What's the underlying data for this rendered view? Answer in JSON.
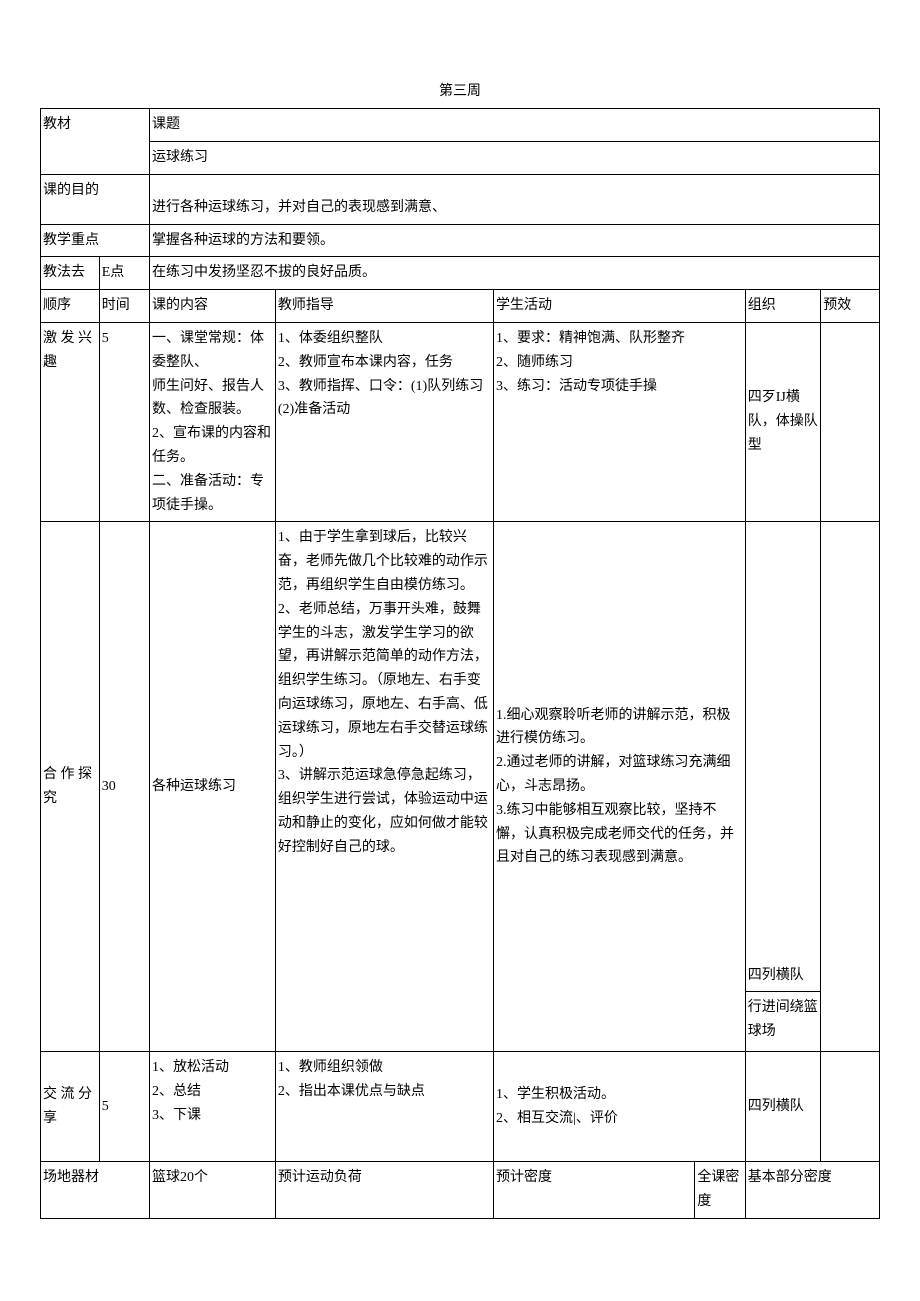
{
  "title": "第三周",
  "header": {
    "jiaocai": "教材",
    "keti_label": "课题",
    "keti_value": "运球练习",
    "mudi_label": "课的目的",
    "mudi_value": "进行各种运球练习，并对自己的表现感到满意、",
    "zhongdian_label": "教学重点",
    "zhongdian_value": "掌握各种运球的方法和要领。",
    "jiaofa_label": "教法去",
    "e_label": "E点",
    "jiaofa_value": "在练习中发扬坚忍不拔的良好品质。"
  },
  "cols": {
    "seq": "顺序",
    "time": "时间",
    "content": "课的内容",
    "guide": "教师指导",
    "activity": "学生活动",
    "org": "组织",
    "eff": "预效"
  },
  "rows": [
    {
      "seq": "激 发 兴趣",
      "time": "5",
      "content": "一、课堂常规：体委整队、\n师生问好、报告人数、检查服装。\n2、宣布课的内容和任务。\n二、准备活动：专项徒手操。",
      "guide": "1、体委组织整队\n2、教师宣布本课内容，任务\n3、教师指挥、口令：(1)队列练习\n(2)准备活动",
      "activity": "1、要求：精神饱满、队形整齐\n2、随师练习\n3、练习：活动专项徒手操",
      "org": "四歹IJ横队，体操队型",
      "eff": ""
    },
    {
      "seq": "合 作 探究",
      "time": "30",
      "content": "各种运球练习",
      "guide": "1、由于学生拿到球后，比较兴奋，老师先做几个比较难的动作示范，再组织学生自由模仿练习。\n2、老师总结，万事开头难，鼓舞学生的斗志，激发学生学习的欲望，再讲解示范简单的动作方法，组织学生练习。（原地左、右手变向运球练习，原地左、右手高、低运球练习，原地左右手交替运球练习。）\n3、讲解示范运球急停急起练习，组织学生进行尝试，体验运动中运动和静止的变化，应如何做才能较好控制好自己的球。",
      "activity": "1.细心观察聆听老师的讲解示范，积极进行模仿练习。\n2.通过老师的讲解，对篮球练习充满细心，斗志昂扬。\n3.练习中能够相互观察比较，坚持不懈，认真积极完成老师交代的任务，并且对自己的练习表现感到满意。",
      "org": "四列横队",
      "org2": "行进间绕篮球场",
      "eff": ""
    },
    {
      "seq": "交 流 分享",
      "time": "5",
      "content": "1、放松活动\n2、总结\n3、下课",
      "guide": "1、教师组织领做\n2、指出本课优点与缺点",
      "activity": "1、学生积极活动。\n2、相互交流|、评价",
      "org": "四列横队",
      "eff": ""
    }
  ],
  "footer": {
    "cdqc_label": "场地器材",
    "cdqc_value": "篮球20个",
    "yjfh_label": "预计运动负荷",
    "yjmd_label": "预计密度",
    "qkmd_label": "全课密度",
    "jbmd_label": "基本部分密度"
  }
}
